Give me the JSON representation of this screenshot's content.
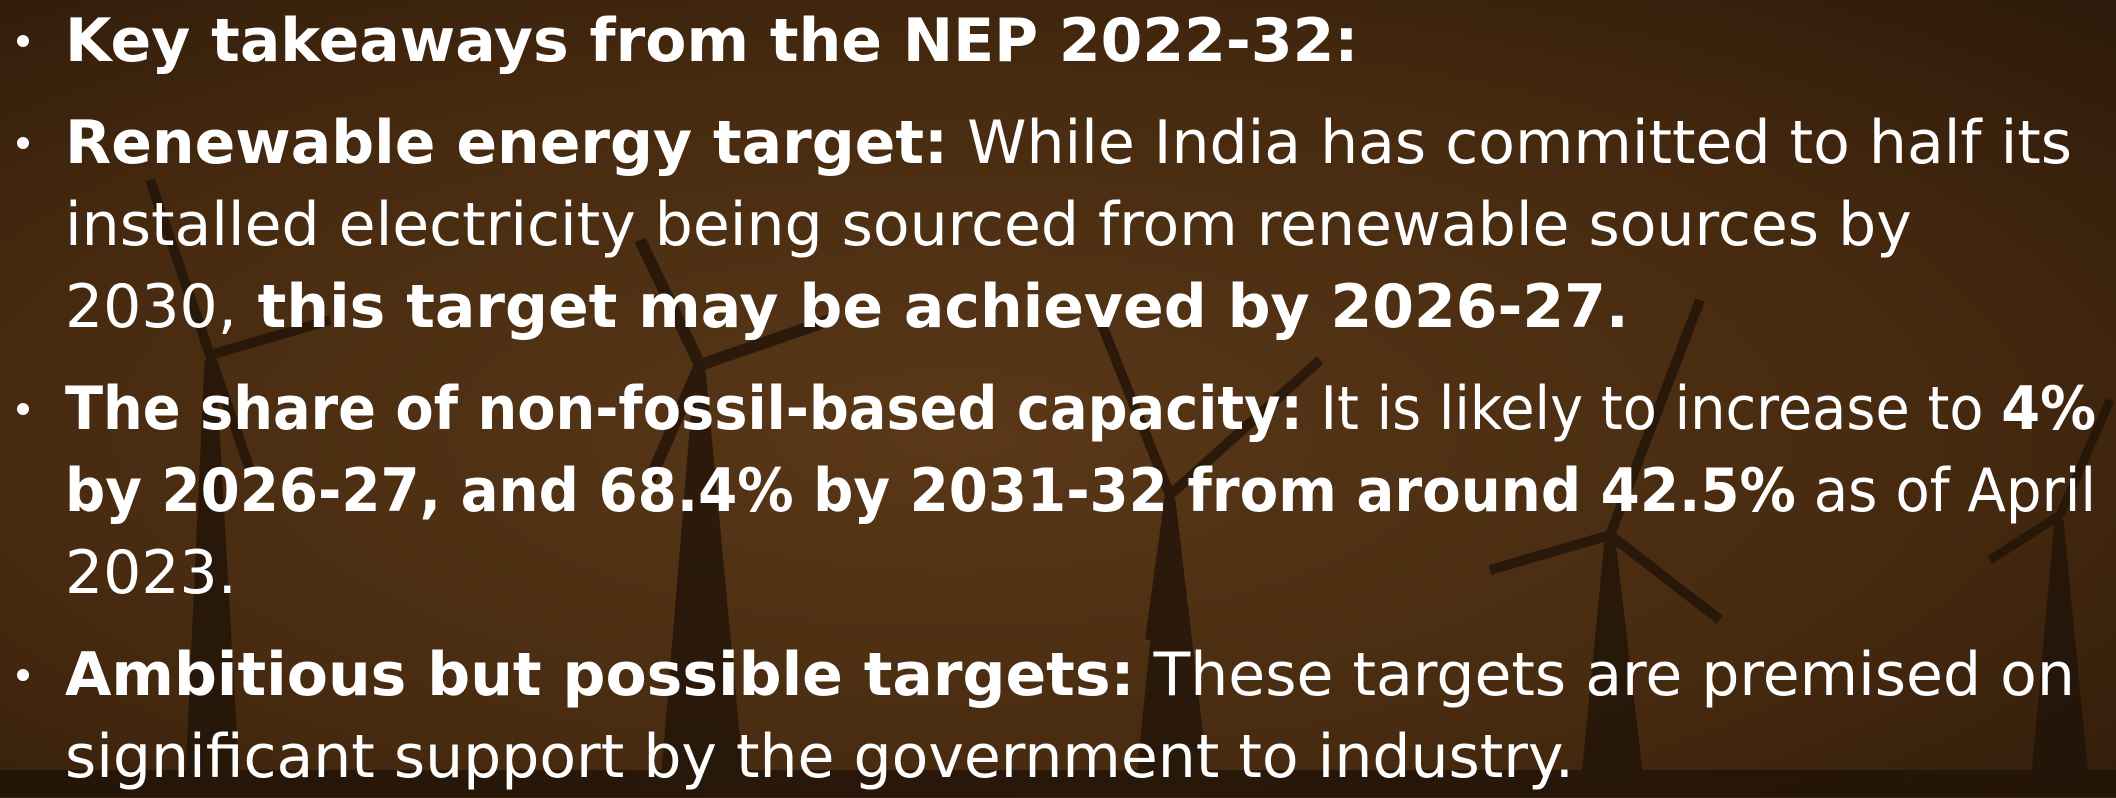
{
  "bullets": [
    {
      "lines": [
        [
          {
            "text": "Key takeaways from the NEP 2022-32:",
            "bold": true
          }
        ]
      ]
    },
    {
      "lines": [
        [
          {
            "text": "Renewable energy target:",
            "bold": true
          },
          {
            "text": " While India has committed to half its",
            "bold": false
          }
        ],
        [
          {
            "text": "installed electricity being sourced from renewable sources by",
            "bold": false
          }
        ],
        [
          {
            "text": "2030,",
            "bold": false
          },
          {
            "text": " this target may be achieved by 2026-27.",
            "bold": true
          }
        ]
      ]
    },
    {
      "lines": [
        [
          {
            "text": "The share of non-fossil-based capacity:",
            "bold": true
          },
          {
            "text": " It is likely to increase to ",
            "bold": false
          },
          {
            "text": "4%",
            "bold": true
          }
        ],
        [
          {
            "text": "by 2026-27, and 68.4% by 2031-32 from around 42.5%",
            "bold": true
          },
          {
            "text": " as of April",
            "bold": false
          }
        ],
        [
          {
            "text": "2023.",
            "bold": false
          }
        ]
      ]
    },
    {
      "lines": [
        [
          {
            "text": "Ambitious but possible targets:",
            "bold": true
          },
          {
            "text": " These targets are premised on",
            "bold": false
          }
        ],
        [
          {
            "text": "significant support by the government to industry.",
            "bold": false
          }
        ]
      ]
    }
  ]
}
